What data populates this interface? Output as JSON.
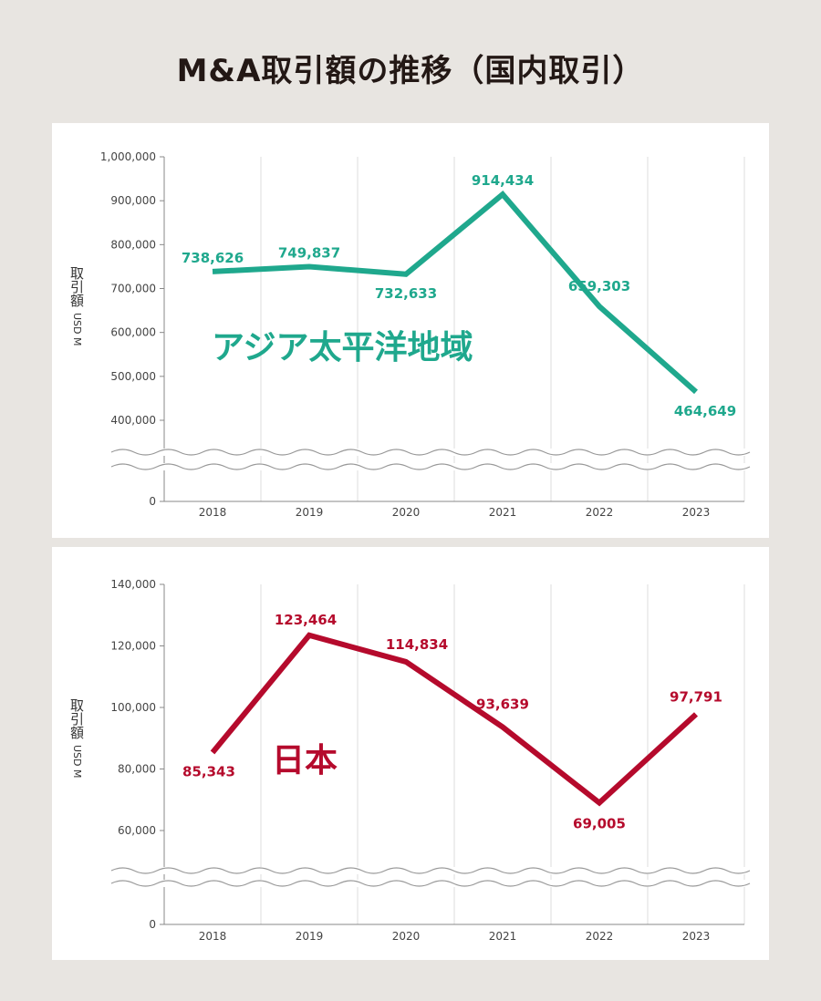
{
  "title": "M&A取引額の推移（国内取引）",
  "chart_data": [
    {
      "type": "line",
      "title": "アジア太平洋地域",
      "ylabel": "取引額",
      "yunit": "USD M",
      "color": "#1fa88d",
      "categories": [
        "2018",
        "2019",
        "2020",
        "2021",
        "2022",
        "2023"
      ],
      "values": [
        738626,
        749837,
        732633,
        914434,
        659303,
        464649
      ],
      "labels": [
        "738,626",
        "749,837",
        "732,633",
        "914,434",
        "659,303",
        "464,649"
      ],
      "yticks": [
        0,
        400000,
        500000,
        600000,
        700000,
        800000,
        900000,
        1000000
      ],
      "ytick_labels": [
        "0",
        "400,000",
        "500,000",
        "600,000",
        "700,000",
        "800,000",
        "900,000",
        "1,000,000"
      ],
      "ylim": [
        400000,
        1000000
      ],
      "axis_break": true
    },
    {
      "type": "line",
      "title": "日本",
      "ylabel": "取引額",
      "yunit": "USD M",
      "color": "#b50a2c",
      "categories": [
        "2018",
        "2019",
        "2020",
        "2021",
        "2022",
        "2023"
      ],
      "values": [
        85343,
        123464,
        114834,
        93639,
        69005,
        97791
      ],
      "labels": [
        "85,343",
        "123,464",
        "114,834",
        "93,639",
        "69,005",
        "97,791"
      ],
      "yticks": [
        0,
        60000,
        80000,
        100000,
        120000,
        140000
      ],
      "ytick_labels": [
        "0",
        "60,000",
        "80,000",
        "100,000",
        "120,000",
        "140,000"
      ],
      "ylim": [
        60000,
        140000
      ],
      "axis_break": true
    }
  ]
}
